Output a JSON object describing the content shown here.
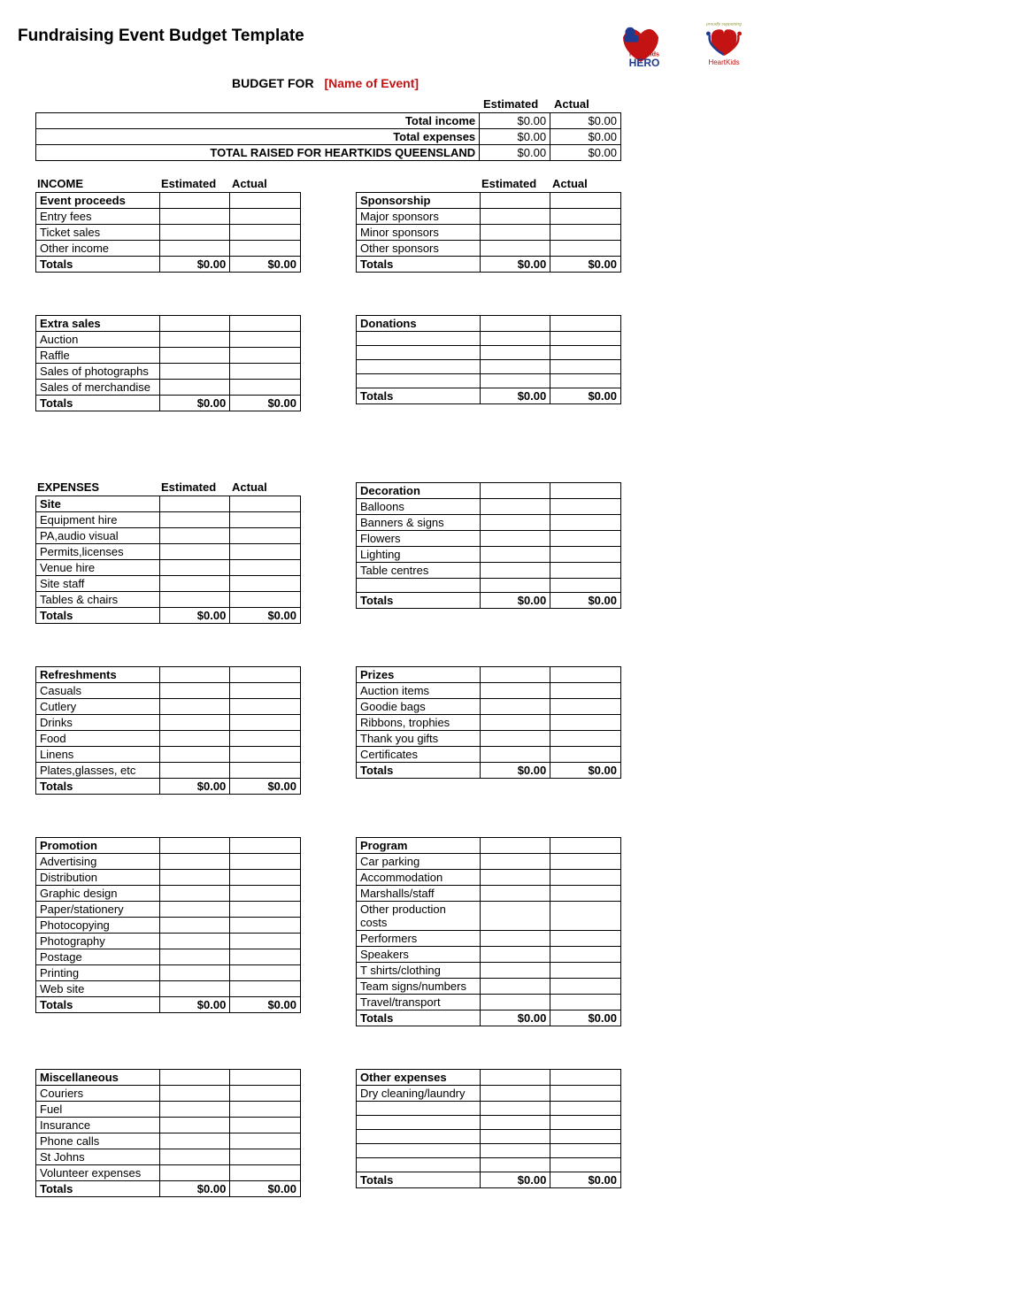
{
  "title": "Fundraising Event Budget Template",
  "budget_for_label": "BUDGET FOR",
  "budget_for_name": "[Name of Event]",
  "cols": {
    "estimated": "Estimated",
    "actual": "Actual"
  },
  "summary": {
    "rows": [
      {
        "label": "Total income",
        "est": "$0.00",
        "act": "$0.00"
      },
      {
        "label": "Total expenses",
        "est": "$0.00",
        "act": "$0.00"
      },
      {
        "label": "TOTAL RAISED FOR HEARTKIDS QUEENSLAND",
        "est": "$0.00",
        "act": "$0.00"
      }
    ]
  },
  "income_label": "INCOME",
  "expenses_label": "EXPENSES",
  "totals_label": "Totals",
  "zero": "$0.00",
  "sections": {
    "event_proceeds": {
      "title": "Event proceeds",
      "items": [
        "Entry fees",
        "Ticket sales",
        "Other income"
      ]
    },
    "sponsorship": {
      "title": "Sponsorship",
      "items": [
        "Major sponsors",
        "Minor sponsors",
        "Other sponsors"
      ]
    },
    "extra_sales": {
      "title": "Extra sales",
      "items": [
        "Auction",
        "Raffle",
        "Sales of photographs",
        "Sales of merchandise"
      ]
    },
    "donations": {
      "title": "Donations",
      "items": [
        "",
        "",
        "",
        ""
      ]
    },
    "site": {
      "title": "Site",
      "items": [
        "Equipment hire",
        "PA,audio visual",
        "Permits,licenses",
        "Venue hire",
        "Site staff",
        "Tables & chairs"
      ]
    },
    "decoration": {
      "title": "Decoration",
      "items": [
        "Balloons",
        "Banners & signs",
        "Flowers",
        "Lighting",
        "Table centres",
        ""
      ]
    },
    "refreshments": {
      "title": "Refreshments",
      "items": [
        "Casuals",
        "Cutlery",
        "Drinks",
        "Food",
        "Linens",
        "Plates,glasses, etc"
      ]
    },
    "prizes": {
      "title": "Prizes",
      "items": [
        "Auction items",
        "Goodie bags",
        "Ribbons, trophies",
        "Thank you gifts",
        "Certificates"
      ]
    },
    "promotion": {
      "title": "Promotion",
      "items": [
        "Advertising",
        "Distribution",
        "Graphic design",
        "Paper/stationery",
        "Photocopying",
        "Photography",
        "Postage",
        "Printing",
        "Web site"
      ]
    },
    "program": {
      "title": "Program",
      "items": [
        "Car parking",
        "Accommodation",
        "Marshalls/staff",
        "Other production costs",
        "Performers",
        "Speakers",
        "T shirts/clothing",
        "Team signs/numbers",
        "Travel/transport"
      ]
    },
    "miscellaneous": {
      "title": "Miscellaneous",
      "items": [
        "Couriers",
        "Fuel",
        "Insurance",
        "Phone calls",
        "St Johns",
        "Volunteer expenses"
      ]
    },
    "other_expenses": {
      "title": "Other expenses",
      "items": [
        "Dry cleaning/laundry",
        "",
        "",
        "",
        "",
        ""
      ]
    }
  },
  "logos": {
    "hero_label": "HeartKids HERO",
    "heartkids_tag": "proudly supporting",
    "heartkids_label": "HeartKids"
  },
  "colors": {
    "text": "#000000",
    "border": "#000000",
    "event_name": "#c41313",
    "hero_blue": "#203a8f",
    "hero_red": "#c41313",
    "hk_tag": "#8a8f2f"
  }
}
